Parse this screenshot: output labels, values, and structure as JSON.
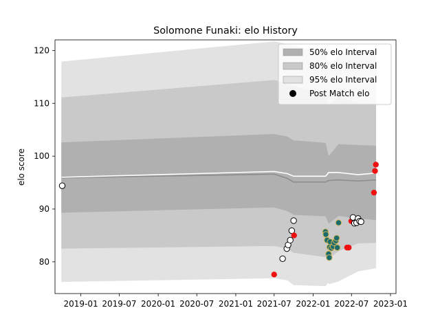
{
  "chart_data": {
    "type": "scatter",
    "title": "Solomone Funaki: elo History",
    "xlabel": "",
    "ylabel": "elo score",
    "xlim": [
      "2018-09-01",
      "2023-01-27"
    ],
    "ylim": [
      74,
      122
    ],
    "x_ticks": [
      "2019-01",
      "2019-07",
      "2020-01",
      "2020-07",
      "2021-01",
      "2021-07",
      "2022-01",
      "2022-07",
      "2023-01"
    ],
    "y_ticks": [
      80,
      90,
      100,
      110,
      120
    ],
    "grid": false,
    "legend": {
      "position": "top-right",
      "entries": [
        "50% elo Interval",
        "80% elo Interval",
        "95% elo Interval",
        "Post Match elo"
      ]
    },
    "colors": {
      "band_50": "#b0b0b0",
      "band_80": "#c9c9c9",
      "band_95": "#e2e2e2",
      "median_line": "#8c8c8c",
      "mean_line": "#ffffff",
      "win_point": "#ffffff",
      "loss_point": "#ee1111",
      "draw_point": "#1a6b6b"
    },
    "series": [
      {
        "name": "50% elo Interval",
        "kind": "band",
        "x": [
          "2018-10-01",
          "2021-07-01",
          "2021-09-01",
          "2021-10-01",
          "2022-03-01",
          "2022-03-15",
          "2022-05-01",
          "2022-08-01",
          "2022-10-25"
        ],
        "lower": [
          89.3,
          90.3,
          89.6,
          88.9,
          88.6,
          87.2,
          88.7,
          88.2,
          87.9
        ],
        "upper": [
          102.6,
          104.2,
          103.7,
          103.0,
          102.5,
          100.0,
          102.3,
          102.1,
          102.0
        ]
      },
      {
        "name": "80% elo Interval",
        "kind": "band",
        "x": [
          "2018-10-01",
          "2021-07-01",
          "2021-09-01",
          "2021-10-01",
          "2022-03-01",
          "2022-03-15",
          "2022-05-01",
          "2022-08-01",
          "2022-10-25"
        ],
        "lower": [
          82.5,
          83.0,
          82.5,
          81.7,
          80.9,
          80.6,
          82.0,
          83.5,
          83.6
        ],
        "upper": [
          111.1,
          114.4,
          113.8,
          113.3,
          111.7,
          109.7,
          111.2,
          110.1,
          110.0
        ]
      },
      {
        "name": "95% elo Interval",
        "kind": "band",
        "x": [
          "2018-10-01",
          "2021-07-01",
          "2021-09-01",
          "2021-10-01",
          "2022-03-01",
          "2022-03-10",
          "2022-03-20",
          "2022-05-01",
          "2022-08-01",
          "2022-10-25"
        ],
        "lower": [
          76.2,
          76.9,
          76.5,
          75.6,
          75.4,
          76.0,
          75.8,
          76.3,
          78.2,
          78.8
        ],
        "upper": [
          117.9,
          121.7,
          121.2,
          120.9,
          119.5,
          118.0,
          116.4,
          119.5,
          120.2,
          120.3
        ]
      },
      {
        "name": "Median",
        "kind": "line",
        "x": [
          "2018-10-01",
          "2021-07-01",
          "2021-09-01",
          "2021-10-01",
          "2022-03-01",
          "2022-03-15",
          "2022-05-01",
          "2022-08-01",
          "2022-10-25"
        ],
        "values": [
          95.9,
          96.6,
          95.8,
          95.1,
          95.1,
          95.4,
          95.5,
          95.3,
          95.5
        ]
      },
      {
        "name": "Mean",
        "kind": "line",
        "x": [
          "2018-10-01",
          "2021-07-01",
          "2021-09-01",
          "2021-10-01",
          "2022-03-01",
          "2022-03-15",
          "2022-05-01",
          "2022-08-01",
          "2022-10-25"
        ],
        "values": [
          96.0,
          97.1,
          96.7,
          96.2,
          96.2,
          96.9,
          96.9,
          96.5,
          96.8
        ]
      },
      {
        "name": "Post Match elo",
        "kind": "points",
        "points": [
          {
            "x": "2018-10-05",
            "y": 94.4,
            "result": "win"
          },
          {
            "x": "2021-07-01",
            "y": 77.6,
            "result": "loss"
          },
          {
            "x": "2021-08-10",
            "y": 80.6,
            "result": "win"
          },
          {
            "x": "2021-08-30",
            "y": 82.5,
            "result": "win"
          },
          {
            "x": "2021-09-05",
            "y": 83.2,
            "result": "win"
          },
          {
            "x": "2021-09-15",
            "y": 84.1,
            "result": "win"
          },
          {
            "x": "2021-09-22",
            "y": 85.9,
            "result": "win"
          },
          {
            "x": "2021-10-01",
            "y": 87.8,
            "result": "win"
          },
          {
            "x": "2021-10-03",
            "y": 85.0,
            "result": "loss"
          },
          {
            "x": "2022-02-28",
            "y": 85.7,
            "result": "draw"
          },
          {
            "x": "2022-03-02",
            "y": 85.2,
            "result": "draw"
          },
          {
            "x": "2022-03-08",
            "y": 84.1,
            "result": "draw"
          },
          {
            "x": "2022-03-15",
            "y": 81.5,
            "result": "draw"
          },
          {
            "x": "2022-03-18",
            "y": 80.8,
            "result": "draw"
          },
          {
            "x": "2022-03-20",
            "y": 82.8,
            "result": "draw"
          },
          {
            "x": "2022-03-22",
            "y": 83.8,
            "result": "draw"
          },
          {
            "x": "2022-03-28",
            "y": 82.6,
            "result": "draw"
          },
          {
            "x": "2022-04-05",
            "y": 82.9,
            "result": "draw"
          },
          {
            "x": "2022-04-10",
            "y": 83.6,
            "result": "draw"
          },
          {
            "x": "2022-04-18",
            "y": 84.0,
            "result": "draw"
          },
          {
            "x": "2022-04-22",
            "y": 84.5,
            "result": "draw"
          },
          {
            "x": "2022-04-25",
            "y": 82.7,
            "result": "draw"
          },
          {
            "x": "2022-05-01",
            "y": 87.4,
            "result": "draw"
          },
          {
            "x": "2022-06-10",
            "y": 82.7,
            "result": "loss"
          },
          {
            "x": "2022-06-18",
            "y": 82.7,
            "result": "loss"
          },
          {
            "x": "2022-06-30",
            "y": 87.7,
            "result": "loss"
          },
          {
            "x": "2022-07-08",
            "y": 88.4,
            "result": "win"
          },
          {
            "x": "2022-07-15",
            "y": 87.3,
            "result": "win"
          },
          {
            "x": "2022-07-25",
            "y": 87.4,
            "result": "win"
          },
          {
            "x": "2022-08-01",
            "y": 88.2,
            "result": "win"
          },
          {
            "x": "2022-08-08",
            "y": 87.7,
            "result": "win"
          },
          {
            "x": "2022-08-15",
            "y": 87.6,
            "result": "win"
          },
          {
            "x": "2022-10-15",
            "y": 93.1,
            "result": "loss"
          },
          {
            "x": "2022-10-20",
            "y": 97.2,
            "result": "loss"
          },
          {
            "x": "2022-10-24",
            "y": 98.4,
            "result": "loss"
          }
        ]
      }
    ]
  }
}
